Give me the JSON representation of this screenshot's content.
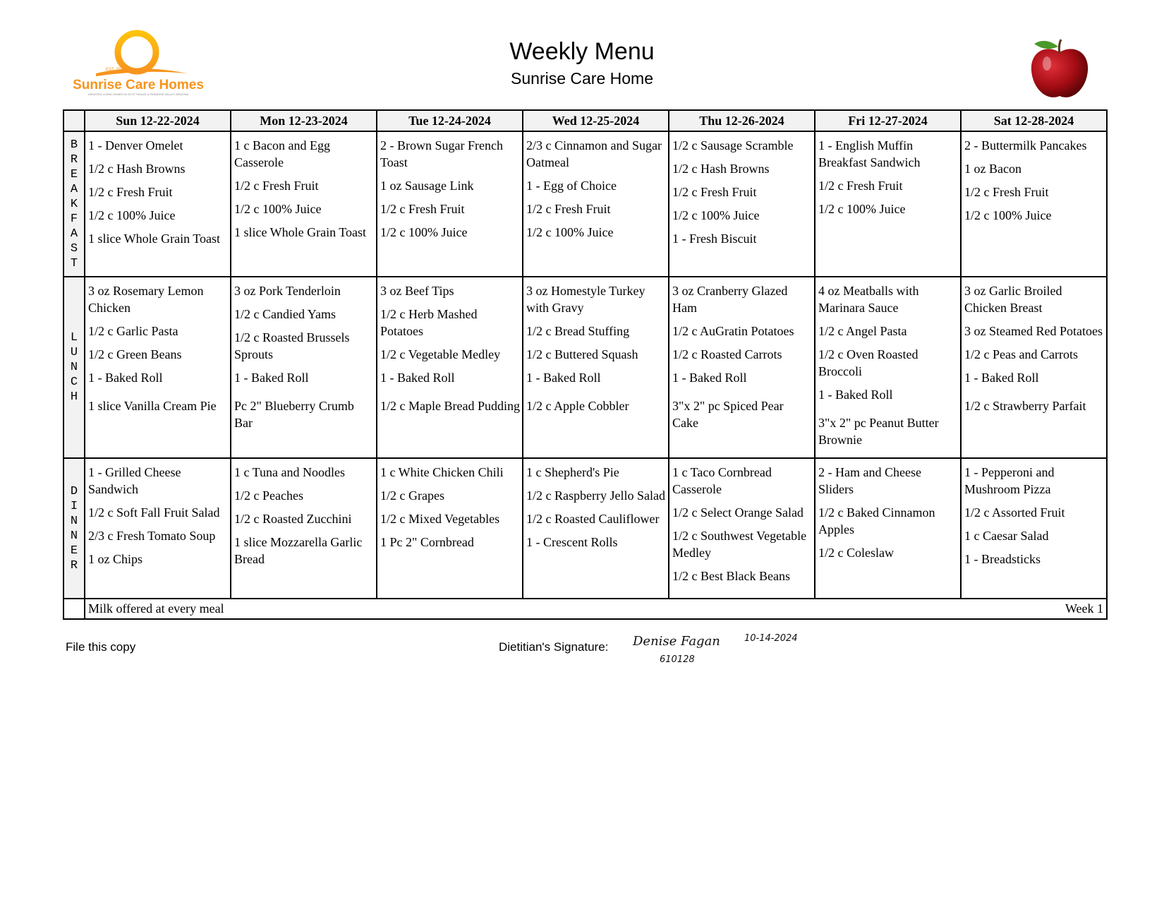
{
  "header": {
    "title": "Weekly Menu",
    "subtitle": "Sunrise Care Home",
    "logo_text": "Sunrise Care Homes",
    "logo_est": "EST. 2011",
    "logo_tagline": "ASSISTED LIVING HOMES IN SCOTTSDALE & PARADISE VALLEY ARIZONA",
    "brand_color": "#f7941d"
  },
  "days": [
    "Sun 12-22-2024",
    "Mon 12-23-2024",
    "Tue 12-24-2024",
    "Wed 12-25-2024",
    "Thu 12-26-2024",
    "Fri 12-27-2024",
    "Sat 12-28-2024"
  ],
  "meals": [
    {
      "label": "BREAKFAST",
      "cells": [
        [
          "1 - Denver Omelet",
          "1/2 c Hash Browns",
          "1/2 c Fresh Fruit",
          "1/2 c 100% Juice",
          "1 slice Whole Grain Toast"
        ],
        [
          "1 c Bacon and Egg Casserole",
          "1/2 c Fresh Fruit",
          "1/2 c 100% Juice",
          "1 slice Whole Grain Toast"
        ],
        [
          "2 - Brown Sugar French Toast",
          "1 oz Sausage Link",
          "1/2 c Fresh Fruit",
          "1/2 c 100% Juice"
        ],
        [
          "2/3 c Cinnamon and Sugar Oatmeal",
          "1 - Egg of Choice",
          "1/2 c Fresh Fruit",
          "1/2 c 100% Juice"
        ],
        [
          "1/2 c Sausage Scramble",
          "1/2 c Hash Browns",
          "1/2 c Fresh Fruit",
          "1/2 c 100% Juice",
          "1 - Fresh Biscuit"
        ],
        [
          "1 - English Muffin Breakfast Sandwich",
          "1/2 c Fresh Fruit",
          "1/2 c 100% Juice"
        ],
        [
          "2 - Buttermilk Pancakes",
          "1 oz Bacon",
          "1/2 c Fresh Fruit",
          "1/2 c 100% Juice"
        ]
      ]
    },
    {
      "label": "LUNCH",
      "cells": [
        [
          "3 oz Rosemary Lemon Chicken",
          "1/2 c Garlic Pasta",
          "1/2 c Green Beans",
          "1 - Baked Roll",
          "1 slice Vanilla Cream Pie"
        ],
        [
          "3 oz Pork Tenderloin",
          "1/2 c Candied Yams",
          "1/2 c Roasted Brussels Sprouts",
          "1 - Baked Roll",
          "Pc 2\" Blueberry Crumb Bar"
        ],
        [
          "3 oz Beef Tips",
          "1/2 c Herb Mashed Potatoes",
          "1/2 c Vegetable Medley",
          "1 - Baked Roll",
          "1/2 c Maple Bread Pudding"
        ],
        [
          "3 oz Homestyle Turkey with Gravy",
          "1/2 c Bread Stuffing",
          "1/2 c Buttered Squash",
          "1 - Baked Roll",
          "1/2 c Apple Cobbler"
        ],
        [
          "3 oz Cranberry Glazed Ham",
          "1/2 c AuGratin Potatoes",
          "1/2 c Roasted Carrots",
          "1 - Baked Roll",
          "3\"x 2\" pc Spiced Pear Cake"
        ],
        [
          "4 oz Meatballs with Marinara Sauce",
          "1/2 c Angel Pasta",
          "1/2 c Oven Roasted Broccoli",
          "1 - Baked Roll",
          "3\"x 2\" pc Peanut Butter Brownie"
        ],
        [
          "3 oz Garlic Broiled Chicken Breast",
          "3 oz Steamed Red Potatoes",
          "1/2 c Peas and Carrots",
          "1 - Baked Roll",
          "1/2 c Strawberry Parfait"
        ]
      ]
    },
    {
      "label": "DINNER",
      "cells": [
        [
          "1 - Grilled Cheese Sandwich",
          "1/2 c Soft Fall Fruit Salad",
          "2/3 c Fresh Tomato Soup",
          "1 oz Chips"
        ],
        [
          "1 c Tuna and Noodles",
          "1/2 c Peaches",
          "1/2 c Roasted Zucchini",
          "1 slice Mozzarella Garlic Bread"
        ],
        [
          "1 c White Chicken Chili",
          "1/2 c Grapes",
          "1/2 c Mixed Vegetables",
          "1 Pc 2\" Cornbread"
        ],
        [
          "1 c Shepherd's Pie",
          "1/2 c Raspberry Jello Salad",
          "1/2 c Roasted Cauliflower",
          "1 - Crescent Rolls"
        ],
        [
          "1 c Taco Cornbread Casserole",
          "1/2 c Select Orange Salad",
          "1/2 c Southwest Vegetable Medley",
          "1/2 c Best Black Beans"
        ],
        [
          "2 - Ham and Cheese Sliders",
          "1/2 c Baked Cinnamon Apples",
          "1/2 c Coleslaw"
        ],
        [
          "1 - Pepperoni and Mushroom Pizza",
          "1/2 c Assorted Fruit",
          "1 c Caesar Salad",
          "1 - Breadsticks"
        ]
      ]
    }
  ],
  "footer_row": {
    "note": "Milk offered at every meal",
    "week": "Week 1"
  },
  "footer": {
    "file_copy": "File this copy",
    "signature_label": "Dietitian's Signature:",
    "signature_name": "Denise Fagan",
    "signature_date": "10-14-2024",
    "signature_id": "610128"
  }
}
